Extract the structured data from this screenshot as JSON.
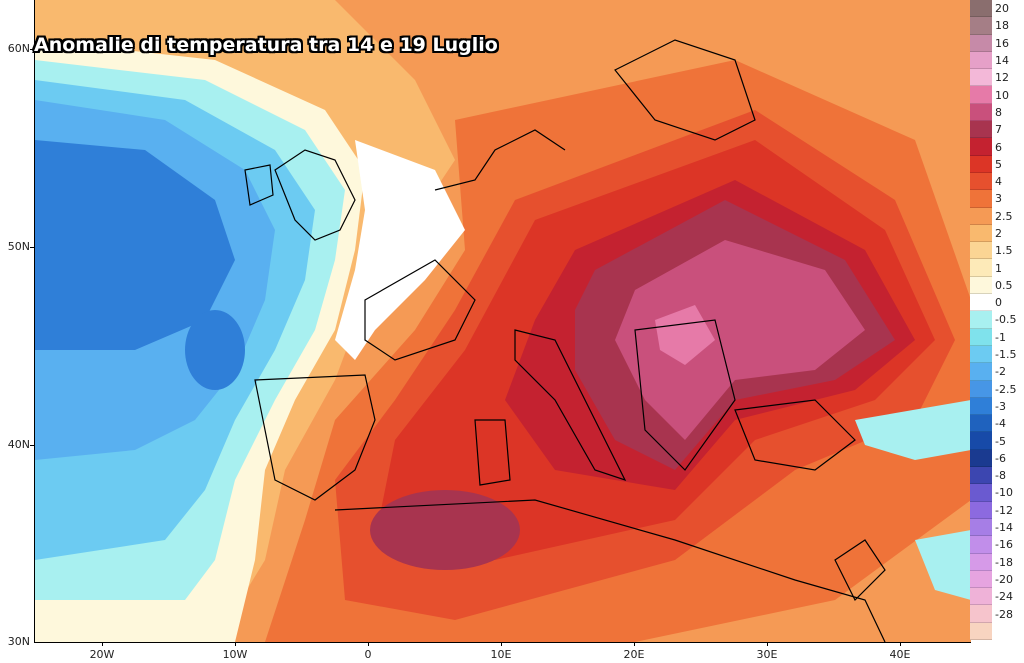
{
  "title": "Anomalie di temperatura tra 14 e 19 Luglio",
  "lat_labels": [
    "60N",
    "50N",
    "40N",
    "30N"
  ],
  "lon_labels": [
    "20W",
    "10W",
    "0",
    "10E",
    "20E",
    "30E",
    "40E"
  ],
  "legend": [
    {
      "label": "20",
      "color": "#8a6e6e"
    },
    {
      "label": "18",
      "color": "#a57e86"
    },
    {
      "label": "16",
      "color": "#c68aa8"
    },
    {
      "label": "14",
      "color": "#e6a0c8"
    },
    {
      "label": "12",
      "color": "#f3b8d8"
    },
    {
      "label": "10",
      "color": "#e67aa8"
    },
    {
      "label": "8",
      "color": "#c9507c"
    },
    {
      "label": "7",
      "color": "#a8344f"
    },
    {
      "label": "6",
      "color": "#c42230"
    },
    {
      "label": "5",
      "color": "#dc3526"
    },
    {
      "label": "4",
      "color": "#e6502e"
    },
    {
      "label": "3",
      "color": "#ef7339"
    },
    {
      "label": "2.5",
      "color": "#f59a55"
    },
    {
      "label": "2",
      "color": "#f9b96e"
    },
    {
      "label": "1.5",
      "color": "#fbd594"
    },
    {
      "label": "1",
      "color": "#fdeab8"
    },
    {
      "label": "0.5",
      "color": "#fef8dc"
    },
    {
      "label": "0",
      "color": "#ffffff"
    },
    {
      "label": "-0.5",
      "color": "#a8f0f0"
    },
    {
      "label": "-1",
      "color": "#7fe2ec"
    },
    {
      "label": "-1.5",
      "color": "#6ccbf2"
    },
    {
      "label": "-2",
      "color": "#59b0f0"
    },
    {
      "label": "-2.5",
      "color": "#4796e6"
    },
    {
      "label": "-3",
      "color": "#2f7fd8"
    },
    {
      "label": "-4",
      "color": "#1f62be"
    },
    {
      "label": "-5",
      "color": "#174aa8"
    },
    {
      "label": "-6",
      "color": "#1a3a90"
    },
    {
      "label": "-8",
      "color": "#3c46b0"
    },
    {
      "label": "-10",
      "color": "#6a5ad0"
    },
    {
      "label": "-12",
      "color": "#8c6ae0"
    },
    {
      "label": "-14",
      "color": "#a67ee6"
    },
    {
      "label": "-16",
      "color": "#c18eea"
    },
    {
      "label": "-18",
      "color": "#d69ae8"
    },
    {
      "label": "-20",
      "color": "#e6a4e0"
    },
    {
      "label": "-24",
      "color": "#efb2d8"
    },
    {
      "label": "-28",
      "color": "#f6c4cc"
    },
    {
      "label": "",
      "color": "#f8d4c0"
    }
  ]
}
